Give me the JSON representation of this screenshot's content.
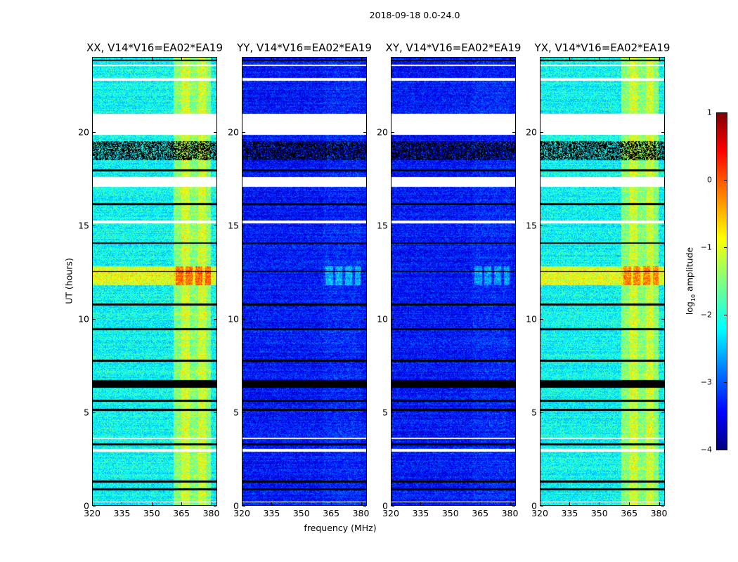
{
  "chart_data": {
    "type": "heatmap",
    "title": "2018-09-18 0.0-24.0",
    "xlabel": "frequency (MHz)",
    "ylabel": "UT (hours)",
    "xlim": [
      320,
      383
    ],
    "ylim": [
      0,
      24
    ],
    "xticks": [
      320,
      335,
      350,
      365,
      380
    ],
    "yticks": [
      0,
      5,
      10,
      15,
      20
    ],
    "colorbar": {
      "label": "log10 amplitude",
      "label_main": "log",
      "label_sub": "10",
      "label_rest": " amplitude",
      "range": [
        -4,
        1
      ],
      "ticks": [
        1,
        0,
        -1,
        -2,
        -3,
        -4
      ],
      "tick_labels": [
        "1",
        "0",
        "−1",
        "−2",
        "−3",
        "−4"
      ],
      "colormap": "jet"
    },
    "flagged_hours": [
      [
        0.15,
        0.2
      ],
      [
        2.85,
        3.0
      ],
      [
        3.55,
        3.6
      ],
      [
        15.1,
        15.25
      ],
      [
        17.05,
        17.6
      ],
      [
        19.85,
        20.97
      ],
      [
        22.75,
        22.9
      ],
      [
        23.55,
        23.62
      ]
    ],
    "dark_hours": [
      [
        0.8,
        0.9
      ],
      [
        1.2,
        1.3
      ],
      [
        3.2,
        3.3
      ],
      [
        5.05,
        5.15
      ],
      [
        5.55,
        5.65
      ],
      [
        6.3,
        6.7
      ],
      [
        7.7,
        7.8
      ],
      [
        9.4,
        9.5
      ],
      [
        10.7,
        10.8
      ],
      [
        12.5,
        12.55
      ],
      [
        14.0,
        14.1
      ],
      [
        16.1,
        16.2
      ],
      [
        17.9,
        18.0
      ],
      [
        18.5,
        19.5
      ],
      [
        23.8,
        23.9
      ]
    ],
    "rfi_band_MHz": [
      361,
      380
    ],
    "rfi_event_hours": [
      11.8,
      12.8
    ],
    "panels": [
      {
        "title": "XX, V14*V16=EA02*EA19",
        "background_log_amp": -2.1,
        "band_log_amp": -1.3,
        "event_broadband_log_amp": -1.0,
        "event_band_log_amp": -0.2
      },
      {
        "title": "YY, V14*V16=EA02*EA19",
        "background_log_amp": -3.3,
        "band_log_amp": -3.2,
        "event_broadband_log_amp": -3.3,
        "event_band_log_amp": -2.5
      },
      {
        "title": "XY, V14*V16=EA02*EA19",
        "background_log_amp": -3.3,
        "band_log_amp": -3.2,
        "event_broadband_log_amp": -3.3,
        "event_band_log_amp": -2.6
      },
      {
        "title": "YX, V14*V16=EA02*EA19",
        "background_log_amp": -2.1,
        "band_log_amp": -1.3,
        "event_broadband_log_amp": -1.0,
        "event_band_log_amp": -0.3
      }
    ]
  }
}
